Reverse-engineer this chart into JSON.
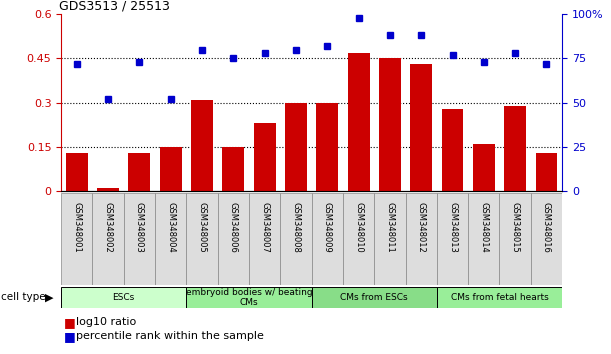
{
  "title": "GDS3513 / 25513",
  "samples": [
    "GSM348001",
    "GSM348002",
    "GSM348003",
    "GSM348004",
    "GSM348005",
    "GSM348006",
    "GSM348007",
    "GSM348008",
    "GSM348009",
    "GSM348010",
    "GSM348011",
    "GSM348012",
    "GSM348013",
    "GSM348014",
    "GSM348015",
    "GSM348016"
  ],
  "log10_ratio": [
    0.13,
    0.01,
    0.13,
    0.15,
    0.31,
    0.15,
    0.23,
    0.3,
    0.3,
    0.47,
    0.45,
    0.43,
    0.28,
    0.16,
    0.29,
    0.13
  ],
  "percentile_rank": [
    72,
    52,
    73,
    52,
    80,
    75,
    78,
    80,
    82,
    98,
    88,
    88,
    77,
    73,
    78,
    72
  ],
  "bar_color": "#cc0000",
  "dot_color": "#0000cc",
  "left_ylim": [
    0,
    0.6
  ],
  "right_ylim": [
    0,
    100
  ],
  "left_yticks": [
    0,
    0.15,
    0.3,
    0.45,
    0.6
  ],
  "right_yticks": [
    0,
    25,
    50,
    75,
    100
  ],
  "left_ytick_labels": [
    "0",
    "0.15",
    "0.3",
    "0.45",
    "0.6"
  ],
  "right_ytick_labels": [
    "0",
    "25",
    "50",
    "75",
    "100%"
  ],
  "hlines": [
    0.15,
    0.3,
    0.45
  ],
  "cell_types": [
    {
      "label": "ESCs",
      "start": 0,
      "end": 3,
      "color": "#ccffcc"
    },
    {
      "label": "embryoid bodies w/ beating\nCMs",
      "start": 4,
      "end": 7,
      "color": "#99ee99"
    },
    {
      "label": "CMs from ESCs",
      "start": 8,
      "end": 11,
      "color": "#88dd88"
    },
    {
      "label": "CMs from fetal hearts",
      "start": 12,
      "end": 15,
      "color": "#99ee99"
    }
  ],
  "cell_type_label": "cell type",
  "legend_bar_label": "log10 ratio",
  "legend_dot_label": "percentile rank within the sample",
  "sample_box_color": "#dddddd",
  "sample_box_edge": "#888888"
}
